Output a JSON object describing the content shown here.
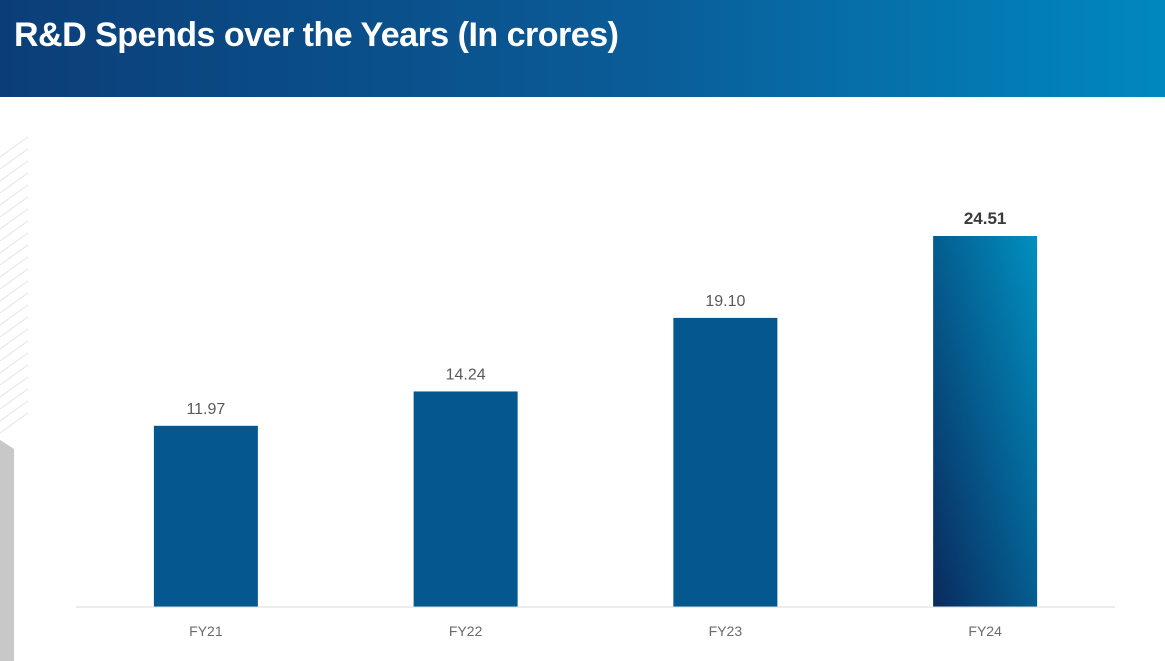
{
  "header": {
    "title": "R&D Spends over the Years (In crores)"
  },
  "colors": {
    "bar": "#04578f",
    "highlight_start": "#0a2a5e",
    "highlight_end": "#0090c0",
    "axis": "#d9d9d9"
  },
  "chart_data": {
    "type": "bar",
    "title": "R&D Spends over the Years (In crores)",
    "categories": [
      "FY21",
      "FY22",
      "FY23",
      "FY24"
    ],
    "values": [
      11.97,
      14.24,
      19.1,
      24.51
    ],
    "data_labels": [
      "11.97",
      "14.24",
      "19.10",
      "24.51"
    ],
    "highlight": "FY24",
    "xlabel": "",
    "ylabel": "",
    "ylim": [
      0,
      24.51
    ],
    "grid": false
  }
}
